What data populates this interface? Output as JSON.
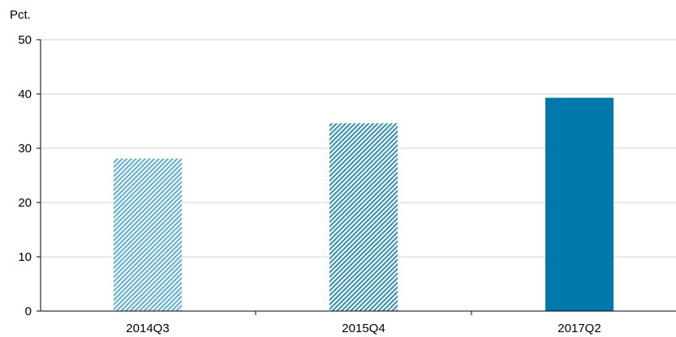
{
  "chart_data": {
    "type": "bar",
    "title": "",
    "ylabel": "Pct.",
    "xlabel": "",
    "categories": [
      "2014Q3",
      "2015Q4",
      "2017Q2"
    ],
    "values": [
      28.1,
      34.6,
      39.3
    ],
    "ylim": [
      0,
      50
    ],
    "yticks": [
      "0",
      "10",
      "20",
      "30",
      "40",
      "50"
    ],
    "grid": "horizontal",
    "colors": {
      "bar_2014Q3": "#5aaed6",
      "bar_2015Q4": "#2f8fb6",
      "bar_2017Q2": "#0078aa",
      "grid": "#d3d3d3",
      "axis": "#000000"
    },
    "bar_fill": [
      "hatched",
      "hatched",
      "solid"
    ]
  }
}
